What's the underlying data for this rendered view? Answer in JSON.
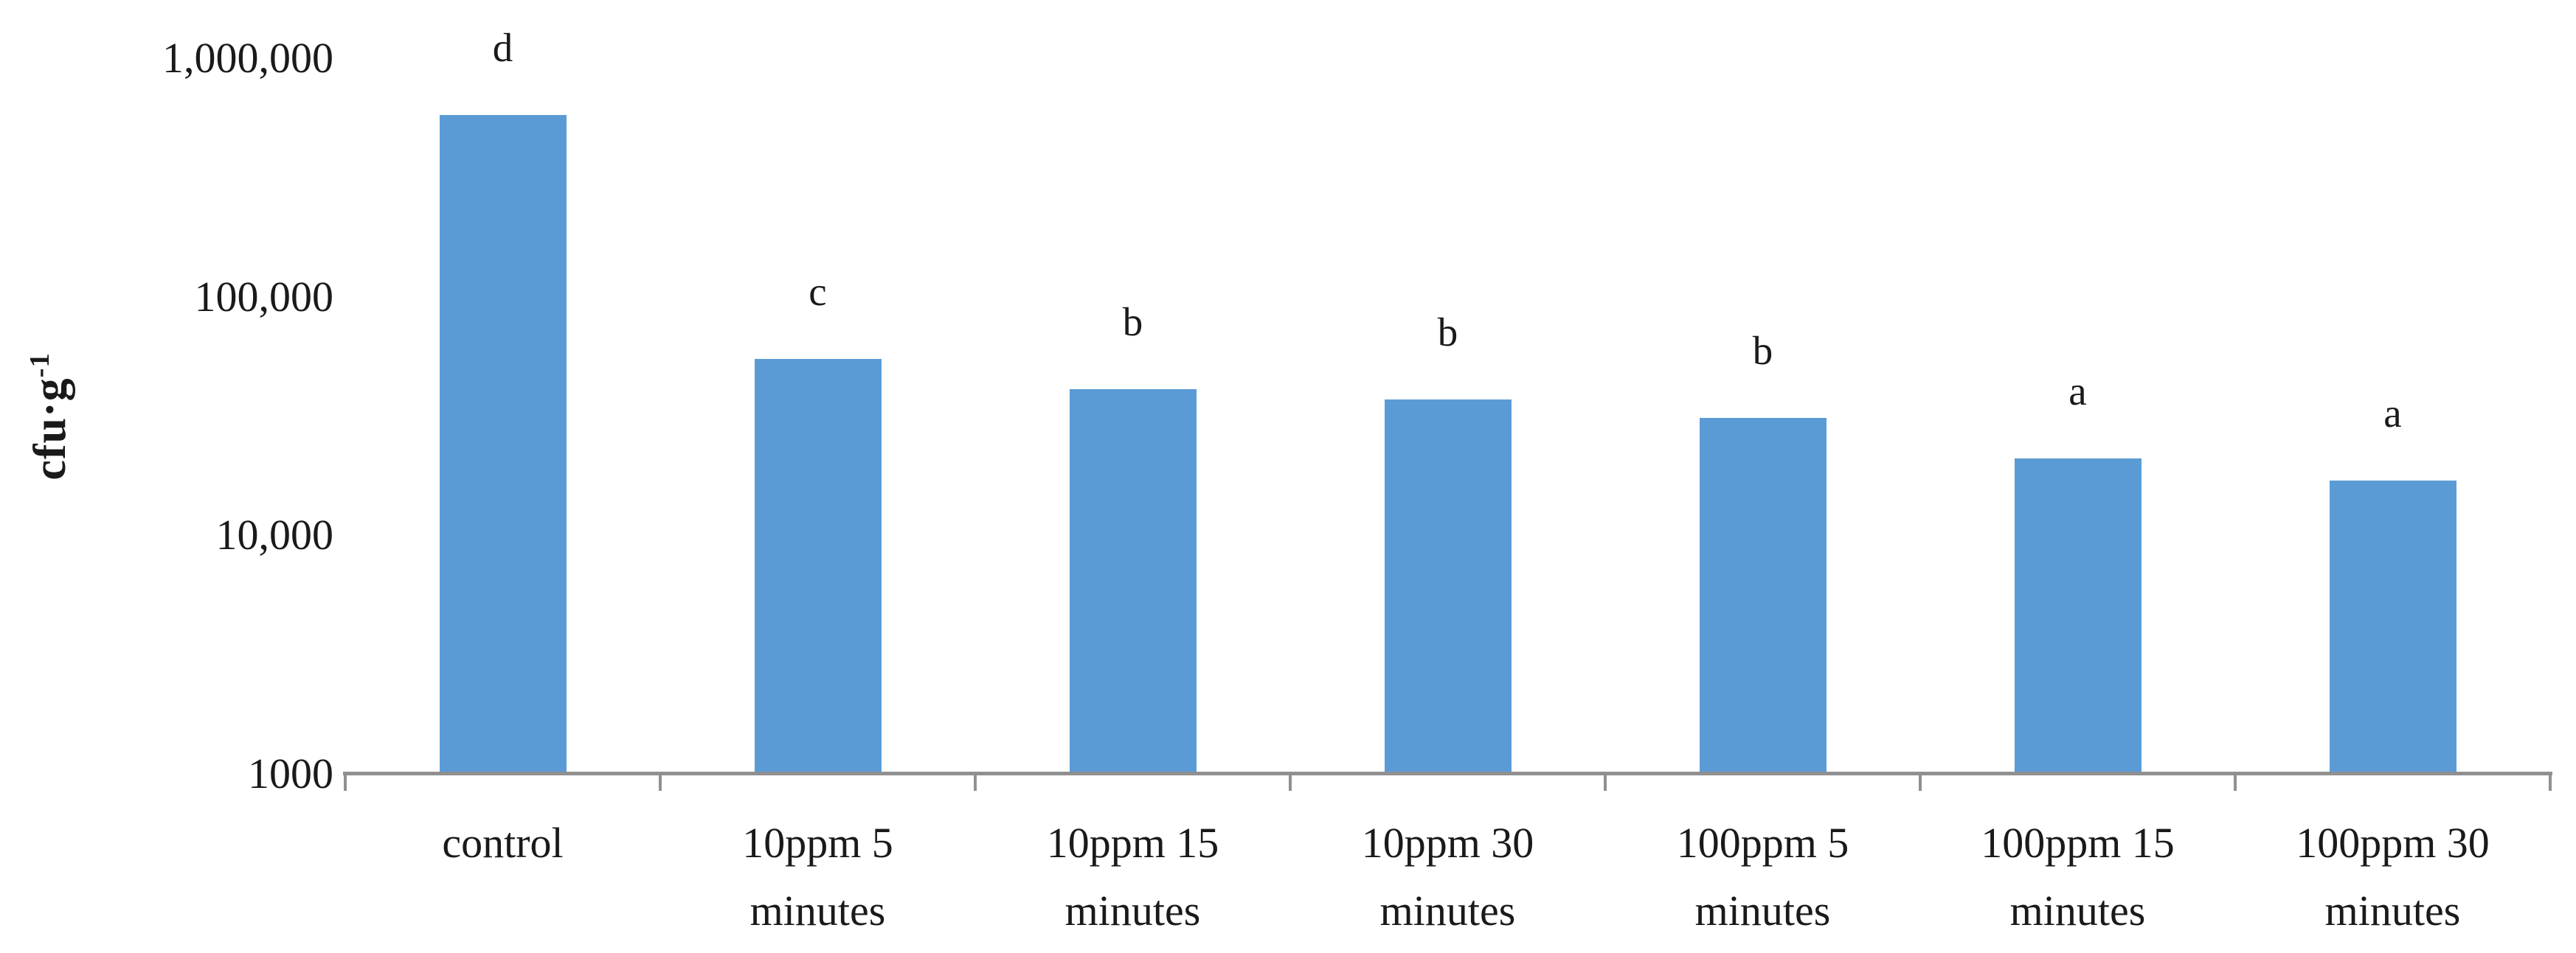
{
  "chart": {
    "y_axis_title": "cfu·g⁻¹",
    "y_axis_title_base": "cfu·g",
    "y_axis_title_sup": "-1",
    "background_color": "#ffffff"
  },
  "chart_data": {
    "type": "bar",
    "title": "",
    "xlabel": "",
    "ylabel": "cfu·g⁻¹",
    "y_scale": "log10",
    "ylim": [
      1000,
      1000000
    ],
    "grid": "off",
    "legend": "none",
    "bar_color": "#5B9BD5",
    "axis_color": "#909090",
    "text_color": "#1a1a1a",
    "y_ticks": [
      {
        "label": "1,000,000",
        "value": 1000000
      },
      {
        "label": "100,000",
        "value": 100000
      },
      {
        "label": "10,000",
        "value": 10000
      },
      {
        "label": "1000",
        "value": 1000
      }
    ],
    "categories": [
      "control",
      "10ppm 5 minutes",
      "10ppm 15 minutes",
      "10ppm 30 minutes",
      "100ppm 5 minutes",
      "100ppm 15 minutes",
      "100ppm 30 minutes"
    ],
    "values": [
      580000,
      55000,
      41000,
      37000,
      31000,
      21000,
      17000
    ],
    "points": [
      {
        "category": "control",
        "lines": [
          "control"
        ],
        "value": 580000,
        "letter": "d"
      },
      {
        "category": "10ppm 5 minutes",
        "lines": [
          "10ppm 5",
          "minutes"
        ],
        "value": 55000,
        "letter": "c"
      },
      {
        "category": "10ppm 15 minutes",
        "lines": [
          "10ppm 15",
          "minutes"
        ],
        "value": 41000,
        "letter": "b"
      },
      {
        "category": "10ppm 30 minutes",
        "lines": [
          "10ppm 30",
          "minutes"
        ],
        "value": 37000,
        "letter": "b"
      },
      {
        "category": "100ppm 5 minutes",
        "lines": [
          "100ppm 5",
          "minutes"
        ],
        "value": 31000,
        "letter": "b"
      },
      {
        "category": "100ppm 15 minutes",
        "lines": [
          "100ppm 15",
          "minutes"
        ],
        "value": 21000,
        "letter": "a"
      },
      {
        "category": "100ppm 30 minutes",
        "lines": [
          "100ppm 30",
          "minutes"
        ],
        "value": 17000,
        "letter": "a"
      }
    ]
  }
}
